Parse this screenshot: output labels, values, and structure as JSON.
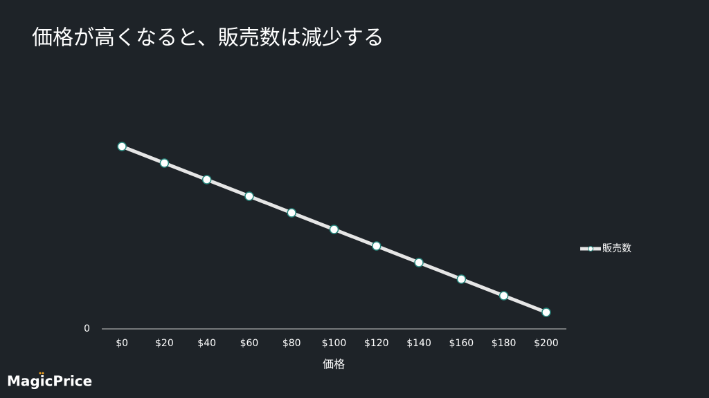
{
  "chart_data": {
    "type": "line",
    "title": "価格が高くなると、販売数は減少する",
    "x_label": "価格",
    "x": [
      0,
      20,
      40,
      60,
      80,
      100,
      120,
      140,
      160,
      180,
      200
    ],
    "series": [
      {
        "name": "販売数",
        "color": "#e6e6e6",
        "marker_edge": "#2a8a80",
        "values": [
          82.5,
          75,
          67.5,
          60,
          52.5,
          45,
          37.5,
          30,
          22.5,
          15,
          7.5
        ]
      }
    ],
    "xlim": [
      -9.5,
      209.5
    ],
    "xticks": [
      {
        "value": 0,
        "label": "$0"
      },
      {
        "value": 20,
        "label": "$20"
      },
      {
        "value": 40,
        "label": "$40"
      },
      {
        "value": 60,
        "label": "$60"
      },
      {
        "value": 80,
        "label": "$80"
      },
      {
        "value": 100,
        "label": "$100"
      },
      {
        "value": 120,
        "label": "$120"
      },
      {
        "value": 140,
        "label": "$140"
      },
      {
        "value": 160,
        "label": "$160"
      },
      {
        "value": 180,
        "label": "$180"
      },
      {
        "value": 200,
        "label": "$200"
      }
    ],
    "ylim": [
      0,
      100
    ],
    "yticks": [
      0
    ],
    "legend": "right",
    "logo": "MagicPrice"
  }
}
